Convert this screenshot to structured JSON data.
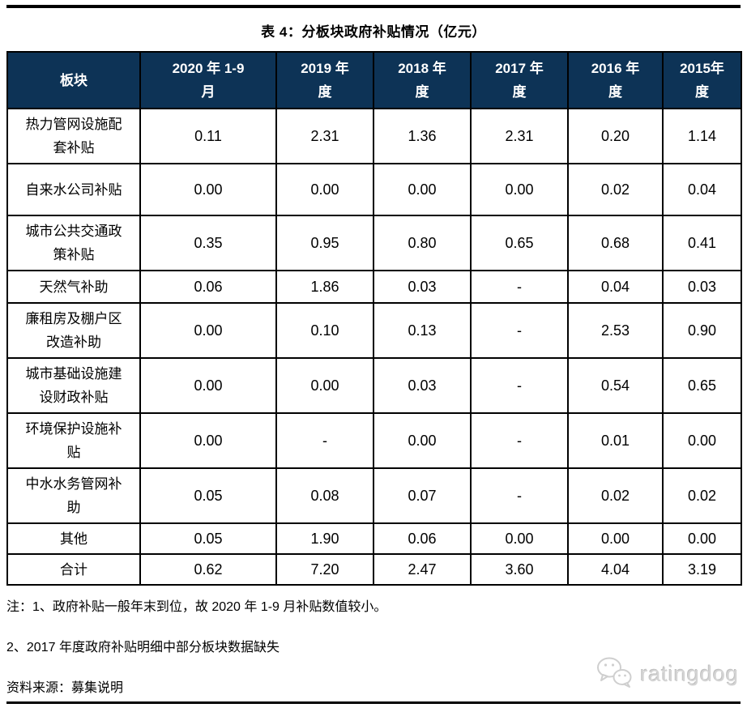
{
  "page": {
    "title": "表 4：分板块政府补贴情况（亿元）"
  },
  "table": {
    "header": [
      {
        "lines": [
          "板块"
        ]
      },
      {
        "lines": [
          "2020 年 1-9",
          "月"
        ]
      },
      {
        "lines": [
          "2019 年",
          "度"
        ]
      },
      {
        "lines": [
          "2018 年",
          "度"
        ]
      },
      {
        "lines": [
          "2017 年",
          "度"
        ]
      },
      {
        "lines": [
          "2016 年",
          "度"
        ]
      },
      {
        "lines": [
          "2015年",
          "度"
        ]
      }
    ],
    "rows": [
      {
        "label_lines": [
          "热力管网设施配",
          "套补贴"
        ],
        "values": [
          "0.11",
          "2.31",
          "1.36",
          "2.31",
          "0.20",
          "1.14"
        ]
      },
      {
        "label_lines": [
          "自来水公司补贴"
        ],
        "values": [
          "0.00",
          "0.00",
          "0.00",
          "0.00",
          "0.02",
          "0.04"
        ]
      },
      {
        "label_lines": [
          "城市公共交通政",
          "策补贴"
        ],
        "values": [
          "0.35",
          "0.95",
          "0.80",
          "0.65",
          "0.68",
          "0.41"
        ]
      },
      {
        "label_lines": [
          "天然气补助"
        ],
        "values": [
          "0.06",
          "1.86",
          "0.03",
          "-",
          "0.04",
          "0.03"
        ]
      },
      {
        "label_lines": [
          "廉租房及棚户区",
          "改造补助"
        ],
        "values": [
          "0.00",
          "0.10",
          "0.13",
          "-",
          "2.53",
          "0.90"
        ]
      },
      {
        "label_lines": [
          "城市基础设施建",
          "设财政补贴"
        ],
        "values": [
          "0.00",
          "0.00",
          "0.03",
          "-",
          "0.54",
          "0.65"
        ]
      },
      {
        "label_lines": [
          "环境保护设施补",
          "贴"
        ],
        "values": [
          "0.00",
          "-",
          "0.00",
          "-",
          "0.01",
          "0.00"
        ]
      },
      {
        "label_lines": [
          "中水水务管网补",
          "助"
        ],
        "values": [
          "0.05",
          "0.08",
          "0.07",
          "-",
          "0.02",
          "0.02"
        ]
      },
      {
        "label_lines": [
          "其他"
        ],
        "values": [
          "0.05",
          "1.90",
          "0.06",
          "0.00",
          "0.00",
          "0.00"
        ]
      },
      {
        "label_lines": [
          "合计"
        ],
        "values": [
          "0.62",
          "7.20",
          "2.47",
          "3.60",
          "4.04",
          "3.19"
        ]
      }
    ]
  },
  "notes": {
    "note1": "注：1、政府补贴一般年末到位，故 2020 年 1-9 月补贴数值较小。",
    "note2": "2、2017 年度政府补贴明细中部分板块数据缺失",
    "source": "资料来源：募集说明"
  },
  "watermark": {
    "text": "ratingdog",
    "icon": "wechat-bubbles-icon",
    "color": "#d4d4d4"
  },
  "colors": {
    "header_bg": "#0d3356",
    "header_text": "#ffffff",
    "border": "#000000",
    "rule": "#000000"
  }
}
